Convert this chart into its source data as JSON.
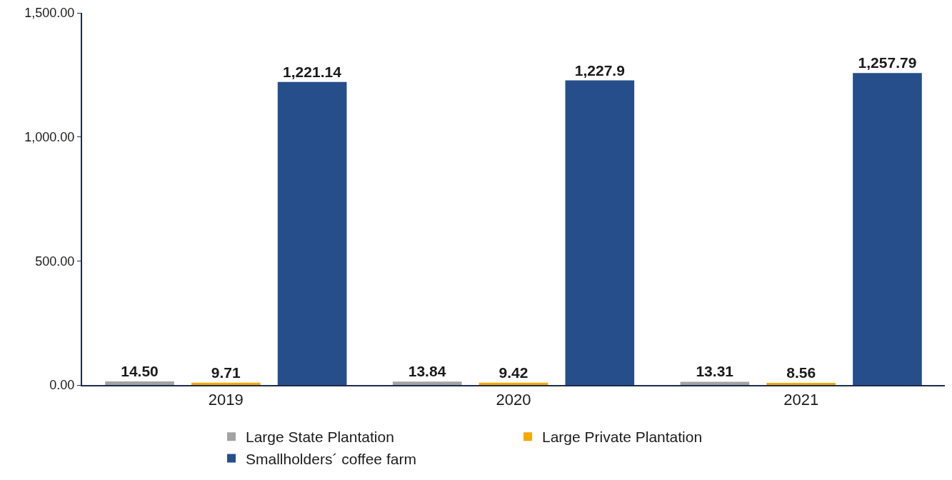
{
  "chart_data": {
    "type": "bar",
    "categories": [
      "2019",
      "2020",
      "2021"
    ],
    "series": [
      {
        "name": "Large State Plantation",
        "color": "#a3a3a3",
        "values": [
          14.5,
          13.84,
          13.31
        ],
        "value_labels": [
          "14.50",
          "13.84",
          "13.31"
        ]
      },
      {
        "name": "Large Private Plantation",
        "color": "#f4a900",
        "values": [
          9.71,
          9.42,
          8.56
        ],
        "value_labels": [
          "9.71",
          "9.42",
          "8.56"
        ]
      },
      {
        "name": "Smallholders´ coffee farm",
        "color": "#254e8b",
        "values": [
          1221.14,
          1227.9,
          1257.79
        ],
        "value_labels": [
          "1,221.14",
          "1,227.9",
          "1,257.79"
        ]
      }
    ],
    "ylim": [
      0,
      1500
    ],
    "yticks": [
      {
        "value": 0,
        "label": "0.00"
      },
      {
        "value": 500,
        "label": "500.00"
      },
      {
        "value": 1000,
        "label": "1,000.00"
      },
      {
        "value": 1500,
        "label": "1,500.00"
      }
    ],
    "grid": false,
    "legend": "bottom"
  }
}
